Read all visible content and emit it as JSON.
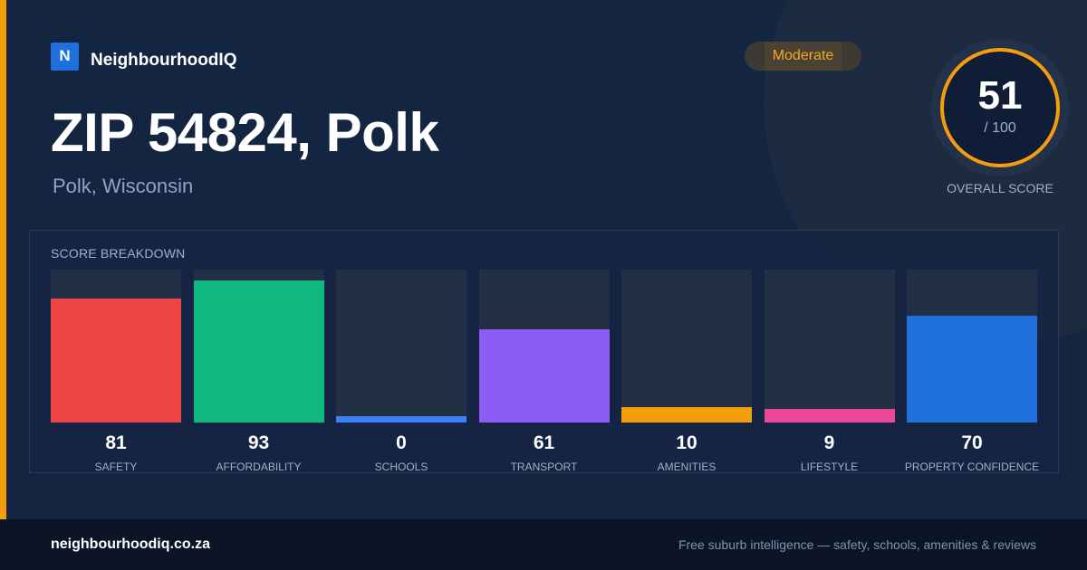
{
  "brand": {
    "logo_letter": "N",
    "name": "NeighbourhoodIQ"
  },
  "header": {
    "title": "ZIP 54824, Polk",
    "subtitle": "Polk, Wisconsin",
    "badge": "Moderate"
  },
  "overall": {
    "score": "51",
    "max": "/ 100",
    "label": "OVERALL SCORE",
    "fraction": 0.51
  },
  "breakdown": {
    "title": "SCORE BREAKDOWN",
    "items": [
      {
        "label": "SAFETY",
        "value": "81",
        "fill": 0.81,
        "color": "#ef4444"
      },
      {
        "label": "AFFORDABILITY",
        "value": "93",
        "fill": 0.93,
        "color": "#10b981"
      },
      {
        "label": "SCHOOLS",
        "value": "0",
        "fill": 0.04,
        "color": "#3b82f6"
      },
      {
        "label": "TRANSPORT",
        "value": "61",
        "fill": 0.61,
        "color": "#8b5cf6"
      },
      {
        "label": "AMENITIES",
        "value": "10",
        "fill": 0.1,
        "color": "#f59e0b"
      },
      {
        "label": "LIFESTYLE",
        "value": "9",
        "fill": 0.09,
        "color": "#ec4899"
      },
      {
        "label": "PROPERTY CONFIDENCE",
        "value": "70",
        "fill": 0.7,
        "color": "#1f6fdc"
      }
    ]
  },
  "footer": {
    "domain": "neighbourhoodiq.co.za",
    "tagline": "Free suburb intelligence — safety, schools, amenities & reviews"
  },
  "colors": {
    "accent": "#f59e0b",
    "brand": "#1f6fdc",
    "background": "#142542"
  }
}
